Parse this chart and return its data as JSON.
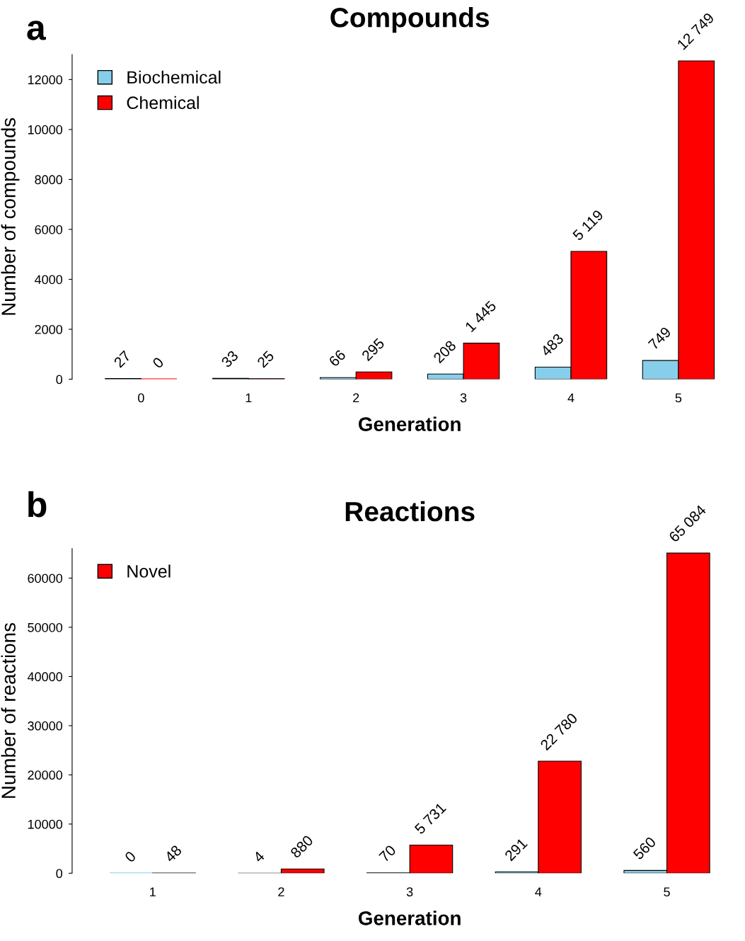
{
  "chart_data": [
    {
      "type": "bar",
      "title": "Compounds",
      "xlabel": "Generation",
      "ylabel": "Number of compounds",
      "categories": [
        "0",
        "1",
        "2",
        "3",
        "4",
        "5"
      ],
      "series": [
        {
          "name": "Biochemical",
          "color": "#87ceeb",
          "values": [
            27,
            33,
            66,
            208,
            483,
            749
          ],
          "value_labels": [
            "27",
            "33",
            "66",
            "208",
            "483",
            "749"
          ]
        },
        {
          "name": "Chemical",
          "color": "#ff0000",
          "values": [
            0,
            25,
            295,
            1445,
            5119,
            12749
          ],
          "value_labels": [
            "0",
            "25",
            "295",
            "1 445",
            "5 119",
            "12 749"
          ]
        }
      ],
      "ylim": [
        0,
        13000
      ],
      "yticks": [
        0,
        2000,
        4000,
        6000,
        8000,
        10000,
        12000
      ],
      "legend": "top left",
      "grid": false,
      "annotations": [
        "a"
      ]
    },
    {
      "type": "bar",
      "title": "Reactions",
      "xlabel": "Generation",
      "ylabel": "Number of reactions",
      "categories": [
        "1",
        "2",
        "3",
        "4",
        "5"
      ],
      "series": [
        {
          "color": "#87ceeb",
          "values": [
            0,
            4,
            70,
            291,
            560
          ],
          "value_labels": [
            "0",
            "4",
            "70",
            "291",
            "560"
          ]
        },
        {
          "name": "Novel",
          "color": "#ff0000",
          "values": [
            48,
            880,
            5731,
            22780,
            65084
          ],
          "value_labels": [
            "48",
            "880",
            "5 731",
            "22 780",
            "65 084"
          ]
        }
      ],
      "ylim": [
        0,
        66000
      ],
      "yticks": [
        0,
        10000,
        20000,
        30000,
        40000,
        50000,
        60000
      ],
      "legend": "top left",
      "grid": false,
      "annotations": [
        "b"
      ]
    }
  ]
}
